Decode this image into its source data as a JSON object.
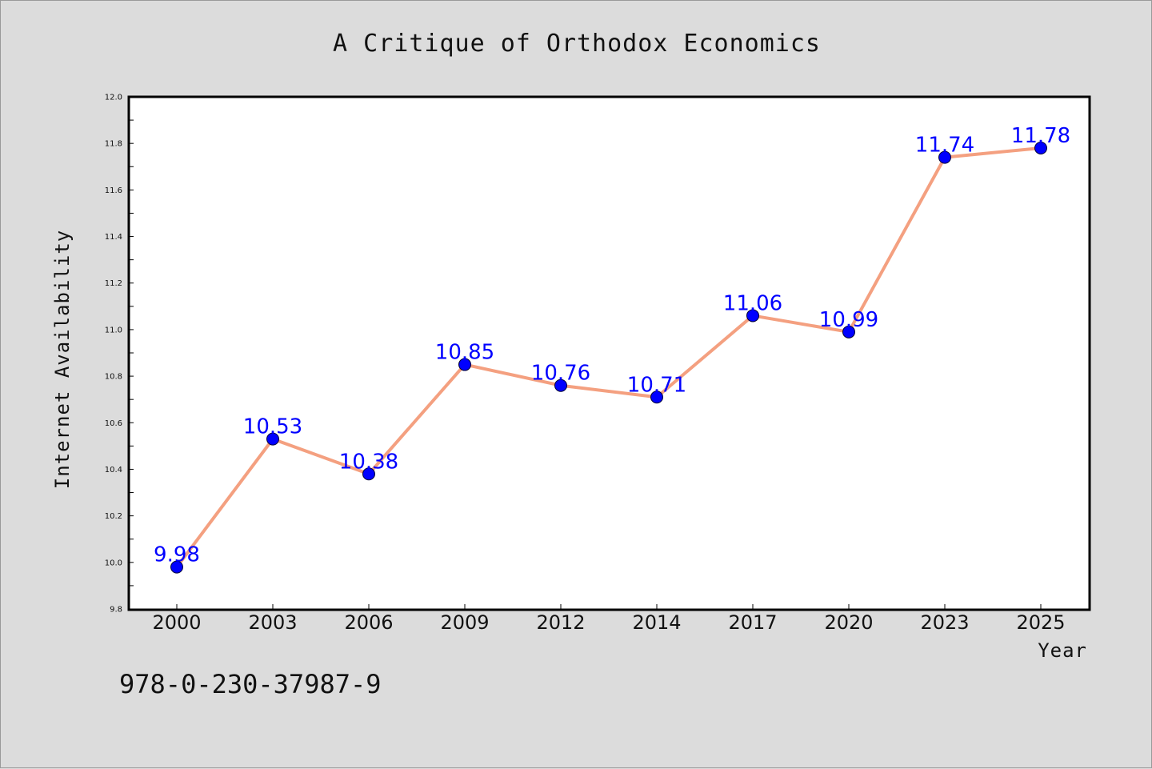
{
  "chart_data": {
    "type": "line",
    "title": "A Critique of Orthodox Economics",
    "xlabel": "Year",
    "ylabel": "Internet Availability",
    "categories": [
      "2000",
      "2003",
      "2006",
      "2009",
      "2012",
      "2014",
      "2017",
      "2020",
      "2023",
      "2025"
    ],
    "series": [
      {
        "values": [
          9.98,
          10.53,
          10.38,
          10.85,
          10.76,
          10.71,
          11.06,
          10.99,
          11.74,
          11.78
        ]
      }
    ],
    "data_labels": [
      "9.98",
      "10.53",
      "10.38",
      "10.85",
      "10.76",
      "10.71",
      "11.06",
      "10.99",
      "11.74",
      "11.78"
    ],
    "ylim": [
      9.8,
      12.0
    ],
    "yticks": [
      "9.8",
      "10.0",
      "10.2",
      "10.4",
      "10.6",
      "10.8",
      "11.0",
      "11.2",
      "11.4",
      "11.6",
      "11.8",
      "12.0"
    ],
    "grid": false,
    "legend": "none",
    "colors": {
      "line": "#f4a080",
      "marker": "#0000ff",
      "label": "#0000ff",
      "background": "#dcdcdc",
      "plot_area": "#ffffff"
    }
  },
  "footer": {
    "isbn": "978-0-230-37987-9"
  }
}
